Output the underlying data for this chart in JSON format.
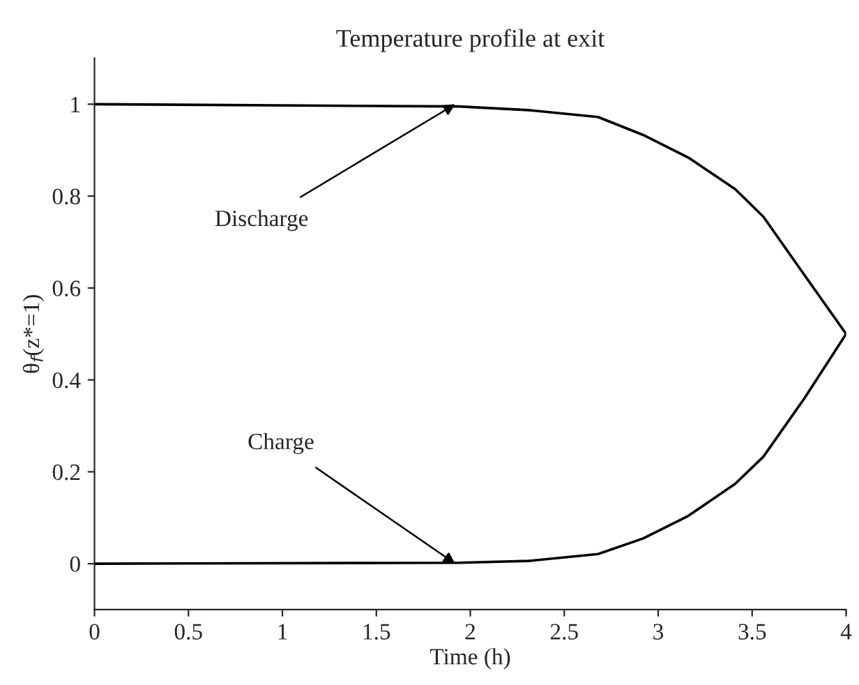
{
  "chart_data": {
    "type": "line",
    "title": "Temperature profile at exit",
    "xlabel": "Time (h)",
    "ylabel": "θ$_{f}$(z*=1)",
    "xlim": [
      0,
      4
    ],
    "ylim": [
      -0.1,
      1.1
    ],
    "xticks": [
      0,
      0.5,
      1,
      1.5,
      2,
      2.5,
      3,
      3.5,
      4
    ],
    "yticks": [
      0,
      0.2,
      0.4,
      0.6,
      0.8,
      1
    ],
    "grid": false,
    "legend": false,
    "marker": "none",
    "line_style": "solid",
    "series": [
      {
        "color": "#000000",
        "x": [
          0,
          1.94,
          2.31,
          2.68,
          2.92,
          3.16,
          3.41,
          3.56,
          3.78,
          4.0
        ],
        "values": [
          1,
          0.995,
          0.987,
          0.972,
          0.933,
          0.884,
          0.815,
          0.755,
          0.627,
          0.5
        ]
      },
      {
        "color": "#000000",
        "x": [
          0,
          1.94,
          2.31,
          2.68,
          2.92,
          3.16,
          3.41,
          3.56,
          3.78,
          4.0
        ],
        "values": [
          0,
          0.002,
          0.006,
          0.021,
          0.055,
          0.104,
          0.174,
          0.233,
          0.361,
          0.5
        ]
      }
    ],
    "annotations": [
      {
        "text": "Discharge",
        "x": 1.92,
        "y": 1.0
      },
      {
        "text": "Charge",
        "x": 1.92,
        "y": 0.0
      }
    ]
  }
}
